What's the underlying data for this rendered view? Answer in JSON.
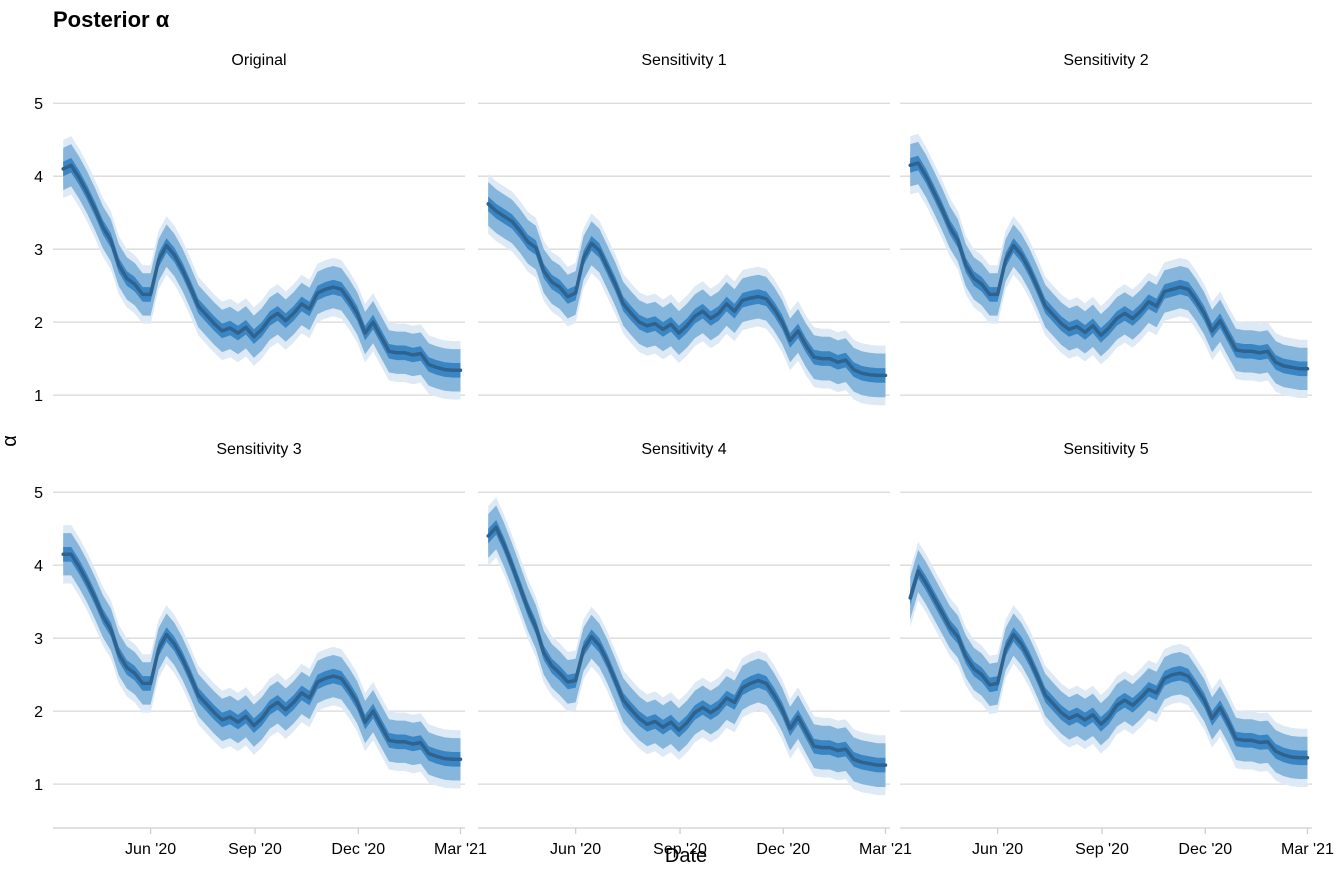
{
  "title": "Posterior α",
  "colors": {
    "band_outer": "#dde9f5",
    "band_second": "#b8d3ea",
    "band_third": "#86b6dc",
    "band_inner": "#3a86c4",
    "median_line": "#30628e",
    "gridline": "#d9d9d9",
    "axis_line": "#cfcfcf"
  },
  "chart_data": {
    "type": "area",
    "title": "Posterior α",
    "xlabel": "Date",
    "ylabel": "α",
    "xlim": [
      "2020-03-07",
      "2021-03-05"
    ],
    "ylim": [
      0.7,
      5.25
    ],
    "y_ticks": [
      1,
      2,
      3,
      4,
      5
    ],
    "x_ticks": [
      {
        "date": "2020-06-01",
        "label": "Jun '20"
      },
      {
        "date": "2020-09-01",
        "label": "Sep '20"
      },
      {
        "date": "2020-12-01",
        "label": "Dec '20"
      },
      {
        "date": "2021-03-01",
        "label": "Mar '21"
      }
    ],
    "grid": "horizontal",
    "interval_bands": [
      "outer",
      "second",
      "third",
      "inner"
    ],
    "x": [
      "2020-03-16",
      "2020-03-23",
      "2020-03-30",
      "2020-04-06",
      "2020-04-13",
      "2020-04-20",
      "2020-04-27",
      "2020-05-04",
      "2020-05-11",
      "2020-05-18",
      "2020-05-25",
      "2020-06-01",
      "2020-06-08",
      "2020-06-15",
      "2020-06-22",
      "2020-06-29",
      "2020-07-06",
      "2020-07-13",
      "2020-07-20",
      "2020-07-27",
      "2020-08-03",
      "2020-08-10",
      "2020-08-17",
      "2020-08-24",
      "2020-08-31",
      "2020-09-07",
      "2020-09-14",
      "2020-09-21",
      "2020-09-28",
      "2020-10-05",
      "2020-10-12",
      "2020-10-19",
      "2020-10-26",
      "2020-11-02",
      "2020-11-09",
      "2020-11-16",
      "2020-11-23",
      "2020-11-30",
      "2020-12-07",
      "2020-12-14",
      "2020-12-21",
      "2020-12-28",
      "2021-01-04",
      "2021-01-11",
      "2021-01-18",
      "2021-01-25",
      "2021-02-01",
      "2021-02-08",
      "2021-02-15",
      "2021-02-22",
      "2021-03-01"
    ],
    "panels": [
      {
        "name": "Original",
        "median": [
          4.1,
          4.15,
          3.98,
          3.78,
          3.55,
          3.3,
          3.12,
          2.78,
          2.6,
          2.52,
          2.38,
          2.38,
          2.85,
          3.05,
          2.92,
          2.72,
          2.48,
          2.22,
          2.1,
          1.98,
          1.88,
          1.92,
          1.85,
          1.93,
          1.8,
          1.9,
          2.05,
          2.12,
          2.02,
          2.12,
          2.25,
          2.18,
          2.4,
          2.45,
          2.48,
          2.45,
          2.3,
          2.12,
          1.85,
          2.0,
          1.8,
          1.6,
          1.58,
          1.58,
          1.55,
          1.57,
          1.42,
          1.38,
          1.35,
          1.34,
          1.34
        ],
        "band_widths": {
          "inner": 0.2,
          "second": 0.38,
          "third": 0.58,
          "outer": 0.8
        }
      },
      {
        "name": "Sensitivity 1",
        "median": [
          3.62,
          3.52,
          3.45,
          3.38,
          3.25,
          3.1,
          3.02,
          2.7,
          2.55,
          2.48,
          2.35,
          2.4,
          2.88,
          3.08,
          2.98,
          2.75,
          2.52,
          2.25,
          2.12,
          2.0,
          1.95,
          1.98,
          1.9,
          1.97,
          1.85,
          1.95,
          2.08,
          2.15,
          2.05,
          2.12,
          2.25,
          2.15,
          2.3,
          2.33,
          2.35,
          2.32,
          2.18,
          2.0,
          1.75,
          1.88,
          1.68,
          1.52,
          1.5,
          1.5,
          1.45,
          1.48,
          1.35,
          1.3,
          1.28,
          1.27,
          1.27
        ],
        "band_widths": {
          "inner": 0.2,
          "second": 0.4,
          "third": 0.6,
          "outer": 0.82
        }
      },
      {
        "name": "Sensitivity 2",
        "median": [
          4.15,
          4.18,
          4.0,
          3.78,
          3.55,
          3.3,
          3.12,
          2.78,
          2.6,
          2.52,
          2.38,
          2.38,
          2.85,
          3.05,
          2.92,
          2.72,
          2.48,
          2.22,
          2.1,
          1.98,
          1.9,
          1.94,
          1.86,
          1.95,
          1.82,
          1.92,
          2.05,
          2.12,
          2.05,
          2.15,
          2.28,
          2.22,
          2.42,
          2.45,
          2.48,
          2.45,
          2.3,
          2.12,
          1.88,
          2.02,
          1.82,
          1.62,
          1.6,
          1.6,
          1.58,
          1.6,
          1.45,
          1.4,
          1.38,
          1.36,
          1.36
        ],
        "band_widths": {
          "inner": 0.2,
          "second": 0.38,
          "third": 0.58,
          "outer": 0.8
        }
      },
      {
        "name": "Sensitivity 3",
        "median": [
          4.15,
          4.15,
          3.98,
          3.78,
          3.55,
          3.3,
          3.12,
          2.78,
          2.6,
          2.52,
          2.38,
          2.38,
          2.85,
          3.05,
          2.92,
          2.72,
          2.48,
          2.22,
          2.1,
          1.98,
          1.88,
          1.92,
          1.85,
          1.93,
          1.8,
          1.9,
          2.05,
          2.12,
          2.02,
          2.12,
          2.25,
          2.18,
          2.4,
          2.45,
          2.48,
          2.45,
          2.3,
          2.12,
          1.85,
          2.0,
          1.8,
          1.6,
          1.58,
          1.58,
          1.55,
          1.57,
          1.42,
          1.38,
          1.35,
          1.34,
          1.34
        ],
        "band_widths": {
          "inner": 0.2,
          "second": 0.38,
          "third": 0.58,
          "outer": 0.8
        }
      },
      {
        "name": "Sensitivity 4",
        "median": [
          4.4,
          4.52,
          4.28,
          4.0,
          3.7,
          3.4,
          3.15,
          2.8,
          2.62,
          2.52,
          2.4,
          2.42,
          2.85,
          3.02,
          2.9,
          2.68,
          2.42,
          2.15,
          2.02,
          1.9,
          1.82,
          1.86,
          1.78,
          1.85,
          1.74,
          1.84,
          1.98,
          2.05,
          1.98,
          2.05,
          2.18,
          2.12,
          2.32,
          2.38,
          2.42,
          2.38,
          2.22,
          2.02,
          1.76,
          1.92,
          1.72,
          1.52,
          1.5,
          1.5,
          1.46,
          1.48,
          1.34,
          1.3,
          1.28,
          1.26,
          1.26
        ],
        "band_widths": {
          "inner": 0.2,
          "second": 0.4,
          "third": 0.6,
          "outer": 0.82
        }
      },
      {
        "name": "Sensitivity 5",
        "median": [
          3.55,
          3.92,
          3.75,
          3.55,
          3.35,
          3.15,
          3.02,
          2.75,
          2.58,
          2.5,
          2.36,
          2.38,
          2.85,
          3.05,
          2.92,
          2.72,
          2.48,
          2.22,
          2.1,
          1.98,
          1.9,
          1.95,
          1.88,
          1.95,
          1.82,
          1.92,
          2.08,
          2.15,
          2.08,
          2.18,
          2.3,
          2.25,
          2.45,
          2.5,
          2.52,
          2.48,
          2.32,
          2.15,
          1.9,
          2.05,
          1.85,
          1.62,
          1.6,
          1.6,
          1.57,
          1.58,
          1.45,
          1.4,
          1.37,
          1.36,
          1.36
        ],
        "band_widths": {
          "inner": 0.2,
          "second": 0.38,
          "third": 0.58,
          "outer": 0.8
        }
      }
    ]
  }
}
